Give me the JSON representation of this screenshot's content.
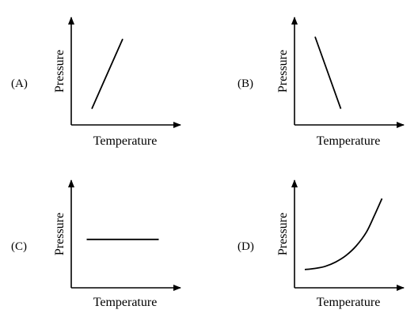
{
  "chart_data": [
    {
      "type": "line",
      "option": "(A)",
      "xlabel": "Temperature",
      "ylabel": "Pressure",
      "xlim": [
        0,
        10
      ],
      "ylim": [
        0,
        10
      ],
      "grid": false,
      "x": [
        2,
        5
      ],
      "y": [
        1.5,
        8
      ]
    },
    {
      "type": "line",
      "option": "(B)",
      "xlabel": "Temperature",
      "ylabel": "Pressure",
      "xlim": [
        0,
        10
      ],
      "ylim": [
        0,
        10
      ],
      "grid": false,
      "x": [
        2,
        4.5
      ],
      "y": [
        8.2,
        1.5
      ]
    },
    {
      "type": "line",
      "option": "(C)",
      "xlabel": "Temperature",
      "ylabel": "Pressure",
      "xlim": [
        0,
        10
      ],
      "ylim": [
        0,
        10
      ],
      "grid": false,
      "x": [
        1.5,
        8.5
      ],
      "y": [
        4.5,
        4.5
      ]
    },
    {
      "type": "line",
      "option": "(D)",
      "xlabel": "Temperature",
      "ylabel": "Pressure",
      "xlim": [
        0,
        10
      ],
      "ylim": [
        0,
        10
      ],
      "grid": false,
      "x": [
        1,
        2,
        3,
        4,
        5,
        6,
        7,
        7.8,
        8.5
      ],
      "y": [
        1.7,
        1.8,
        2.0,
        2.4,
        3.0,
        3.9,
        5.2,
        6.8,
        8.3
      ]
    }
  ]
}
